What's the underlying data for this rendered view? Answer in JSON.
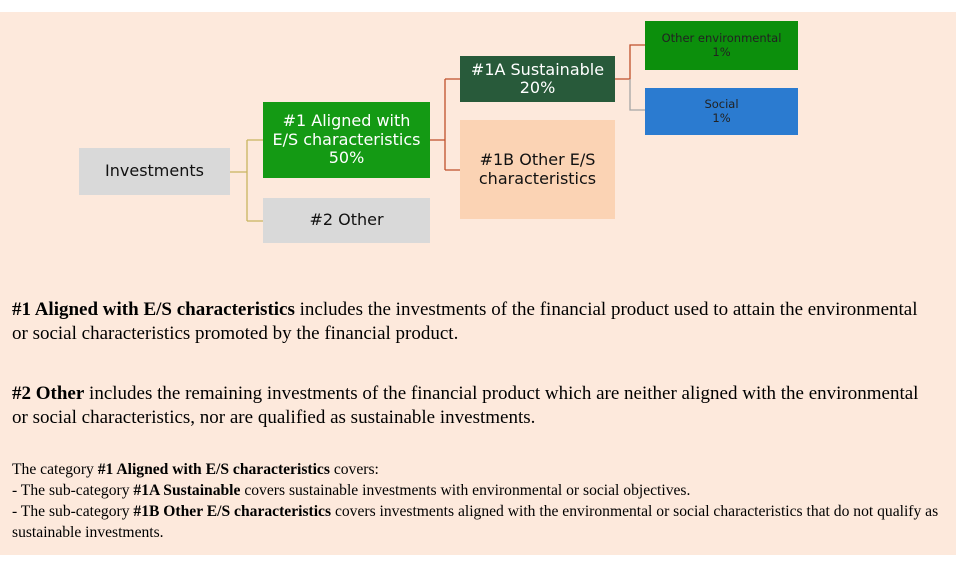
{
  "nodes": [
    {
      "label": [
        "Investments"
      ]
    },
    {
      "label": [
        "#1 Aligned with",
        "E/S characteristics",
        "50%"
      ]
    },
    {
      "label": [
        "#2 Other"
      ]
    },
    {
      "label": [
        "#1A Sustainable",
        "20%"
      ]
    },
    {
      "label": [
        "#1B Other E/S",
        "characteristics"
      ]
    },
    {
      "label": [
        "Other environmental",
        "1%"
      ]
    },
    {
      "label": [
        "Social",
        "1%"
      ]
    }
  ],
  "paragraphs": [
    {
      "bold": "#1 Aligned with E/S characteristics",
      "text": "includes the investments of the financial product used to attain the environmental or social characteristics promoted by the financial product."
    },
    {
      "bold": "#2 Other",
      "text": "includes the remaining investments of the financial product which are neither aligned with the environmental or social characteristics, nor are qualified as sustainable investments."
    }
  ],
  "note": {
    "intro": {
      "before": "The category",
      "bold": "#1 Aligned with E/S characteristics",
      "after": "covers:"
    },
    "items": [
      {
        "before": "- The sub-category",
        "bold": "#1A Sustainable",
        "after": "covers sustainable investments with environmental or social objectives."
      },
      {
        "before": "- The sub-category",
        "bold": "#1B Other E/S characteristics",
        "after": "covers investments aligned with the environmental or social characteristics that do not qualify as sustainable investments."
      }
    ]
  }
}
